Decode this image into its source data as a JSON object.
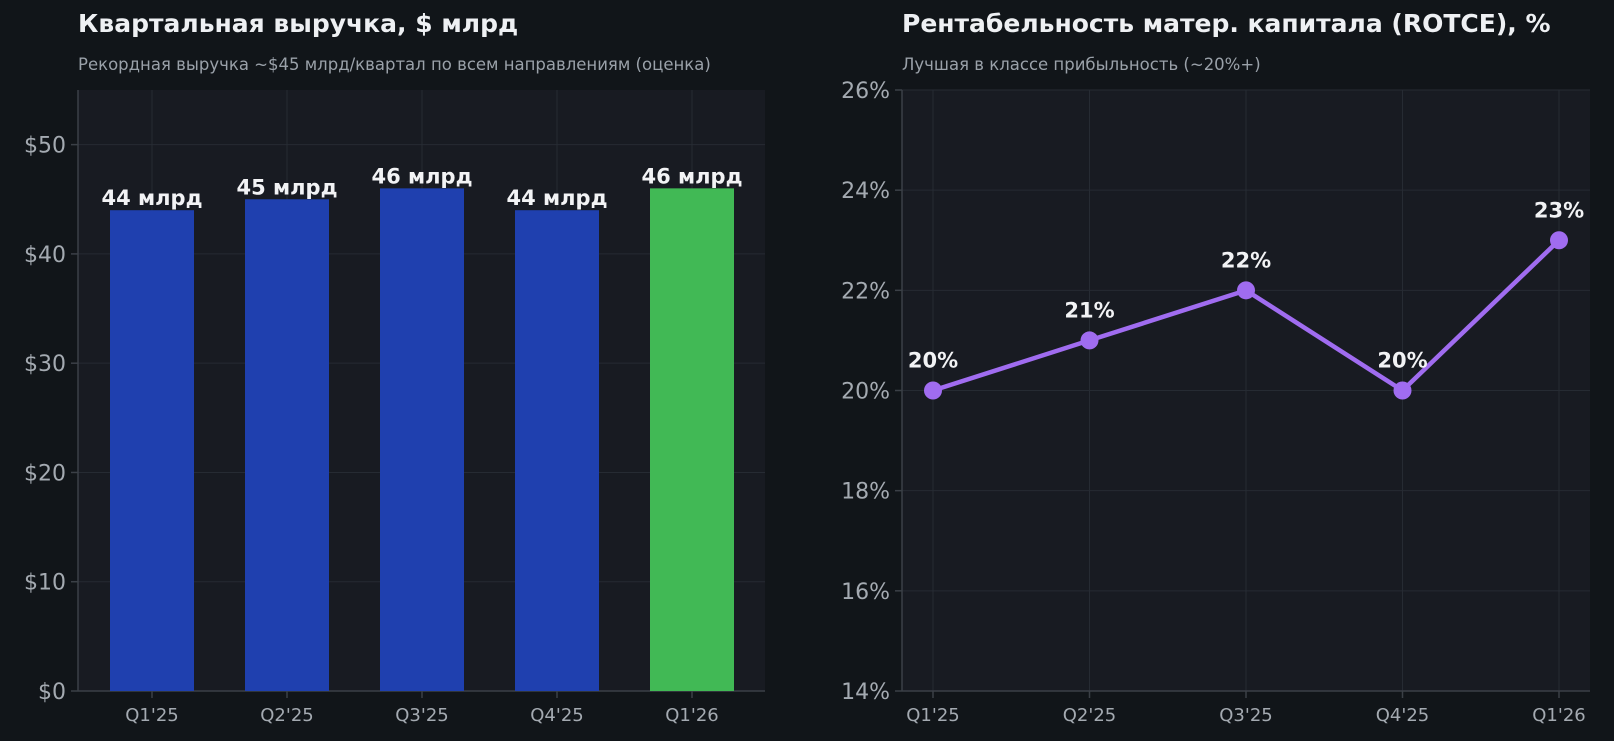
{
  "chart_data": [
    {
      "type": "bar",
      "title": "Квартальная выручка, $ млрд",
      "subtitle": "Рекордная выручка ~$45 млрд/квартал по всем направлениям (оценка)",
      "categories": [
        "Q1'25",
        "Q2'25",
        "Q3'25",
        "Q4'25",
        "Q1'26"
      ],
      "values": [
        44,
        45,
        46,
        44,
        46
      ],
      "data_labels": [
        "44 млрд",
        "45 млрд",
        "46 млрд",
        "44 млрд",
        "46 млрд"
      ],
      "bar_colors": [
        "#1f40af",
        "#1f40af",
        "#1f40af",
        "#1f40af",
        "#41b955"
      ],
      "ylim": [
        0,
        55
      ],
      "yticks": [
        0,
        10,
        20,
        30,
        40,
        50
      ],
      "ytick_labels": [
        "$0",
        "$10",
        "$20",
        "$30",
        "$40",
        "$50"
      ],
      "xlabel": "",
      "ylabel": "",
      "grid": true,
      "legend": "none"
    },
    {
      "type": "line",
      "title": "Рентабельность матер. капитала (ROTCE), %",
      "subtitle": "Лучшая в классе прибыльность (~20%+)",
      "categories": [
        "Q1'25",
        "Q2'25",
        "Q3'25",
        "Q4'25",
        "Q1'26"
      ],
      "values": [
        20,
        21,
        22,
        20,
        23
      ],
      "data_labels": [
        "20%",
        "21%",
        "22%",
        "20%",
        "23%"
      ],
      "line_color": "#a06cf0",
      "ylim": [
        14,
        26
      ],
      "yticks": [
        14,
        16,
        18,
        20,
        22,
        24,
        26
      ],
      "ytick_labels": [
        "14%",
        "16%",
        "18%",
        "20%",
        "22%",
        "24%",
        "26%"
      ],
      "xlabel": "",
      "ylabel": "",
      "grid": true,
      "legend": "none"
    }
  ],
  "colors": {
    "page_background": "#111519",
    "plot_background": "#181b22",
    "grid": "#262b33",
    "axis": "#3b4047",
    "tick_text": "#a4aab1",
    "title_text": "#eef0f3",
    "subtitle_text": "#9aa1a9",
    "label_text": "#f2f3f5"
  }
}
